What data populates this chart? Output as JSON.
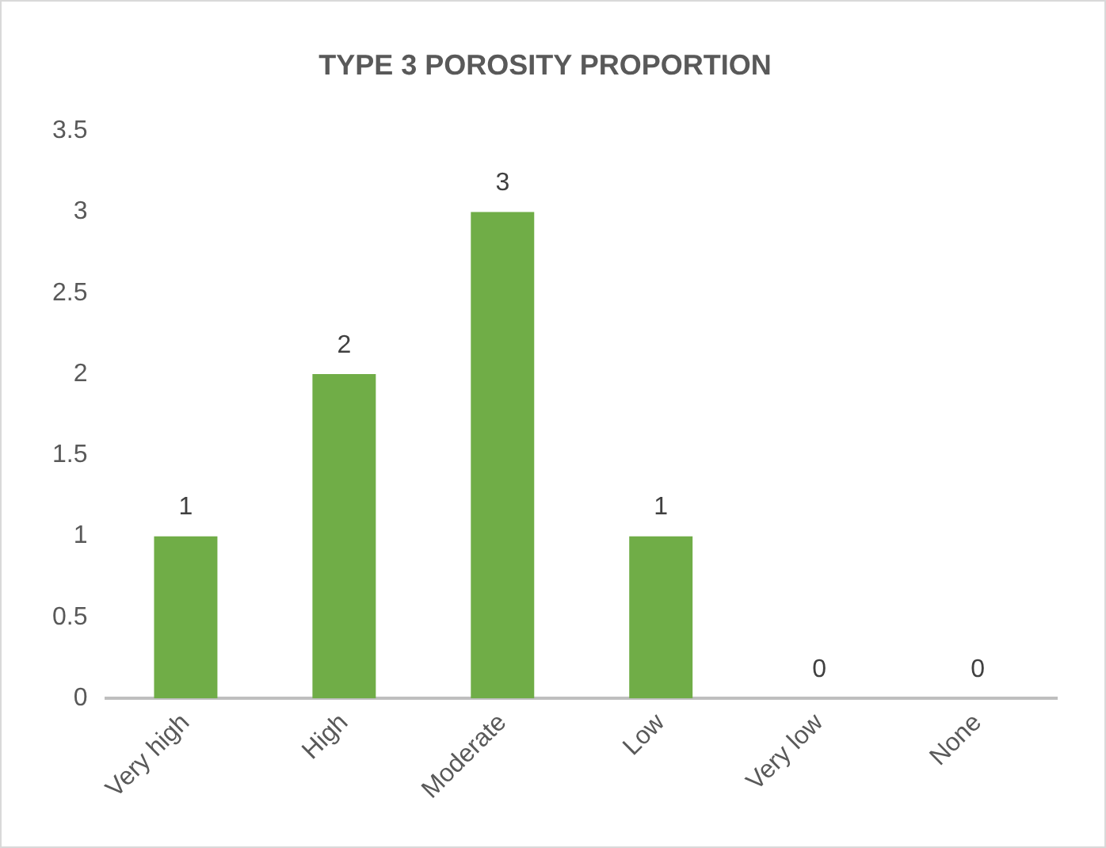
{
  "chart_data": {
    "type": "bar",
    "title": "TYPE 3 POROSITY PROPORTION",
    "categories": [
      "Very high",
      "High",
      "Moderate",
      "Low",
      "Very low",
      "None"
    ],
    "values": [
      1,
      2,
      3,
      1,
      0,
      0
    ],
    "color": "#70ad47",
    "ylim": [
      0,
      3.5
    ],
    "yticks": [
      0,
      0.5,
      1,
      1.5,
      2,
      2.5,
      3,
      3.5
    ],
    "grid": false,
    "legend": false,
    "data_labels": true
  }
}
